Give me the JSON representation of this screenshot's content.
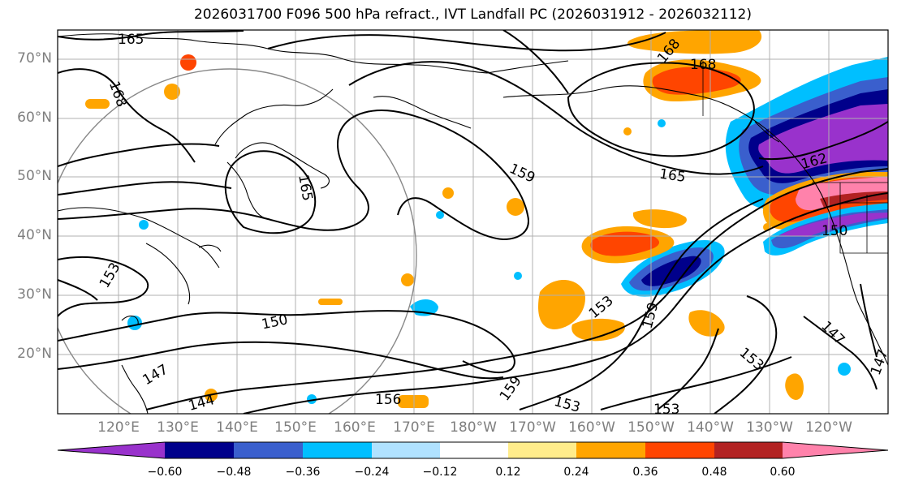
{
  "title": "2026031700 F096 500 hPa refract., IVT Landfall PC (2026031912 - 2026032112)",
  "lat_labels": [
    "70°N",
    "60°N",
    "50°N",
    "40°N",
    "30°N",
    "20°N"
  ],
  "lon_labels": [
    "120°E",
    "130°E",
    "140°E",
    "150°E",
    "160°E",
    "170°E",
    "180°W",
    "170°W",
    "160°W",
    "150°W",
    "140°W",
    "130°W",
    "120°W"
  ],
  "contour_labels": [
    "165",
    "168",
    "168",
    "168",
    "159",
    "165",
    "162",
    "165",
    "153",
    "150",
    "147",
    "144",
    "156",
    "159",
    "153",
    "159",
    "153",
    "153",
    "153",
    "147",
    "147",
    "150"
  ],
  "colorbar": {
    "ticks": [
      "−0.60",
      "−0.48",
      "−0.36",
      "−0.24",
      "−0.12",
      "0.12",
      "0.24",
      "0.36",
      "0.48",
      "0.60"
    ],
    "colors": [
      "#9932cc",
      "#00008b",
      "#3a5fcd",
      "#00bfff",
      "#b0e2ff",
      "#ffffff",
      "#ffec8b",
      "#ffa500",
      "#ff4500",
      "#b22222",
      "#ff82ab"
    ]
  }
}
